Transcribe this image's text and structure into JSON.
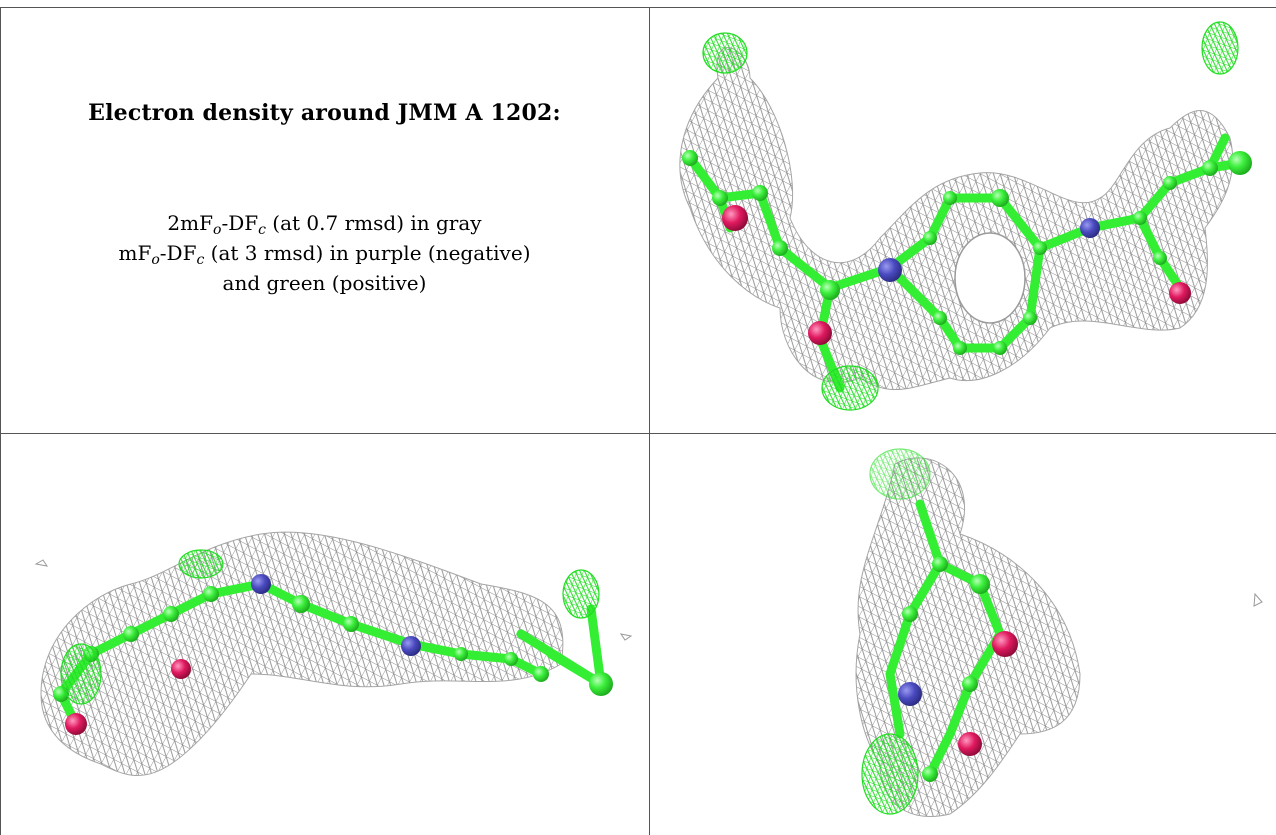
{
  "caption": {
    "title": "Electron density around JMM A 1202:",
    "line1_pre": "2mF",
    "line1_sub1": "o",
    "line1_mid": "-DF",
    "line1_sub2": "c",
    "line1_post": " (at 0.7 rmsd) in gray",
    "line2_pre": "mF",
    "line2_sub1": "o",
    "line2_mid": "-DF",
    "line2_sub2": "c",
    "line2_post": " (at 3 rmsd) in purple (negative)",
    "line3": "and green (positive)"
  },
  "colors": {
    "mesh_gray": "#8c8c8c",
    "carbon_green": "#33ee33",
    "difference_green": "#22dd22",
    "nitrogen_blue": "#4747b8",
    "oxygen_red": "#e0195f",
    "border": "#555555"
  },
  "panels": [
    {
      "name": "top-right",
      "view": "front"
    },
    {
      "name": "bottom-left",
      "view": "side"
    },
    {
      "name": "bottom-right",
      "view": "end-on"
    }
  ]
}
